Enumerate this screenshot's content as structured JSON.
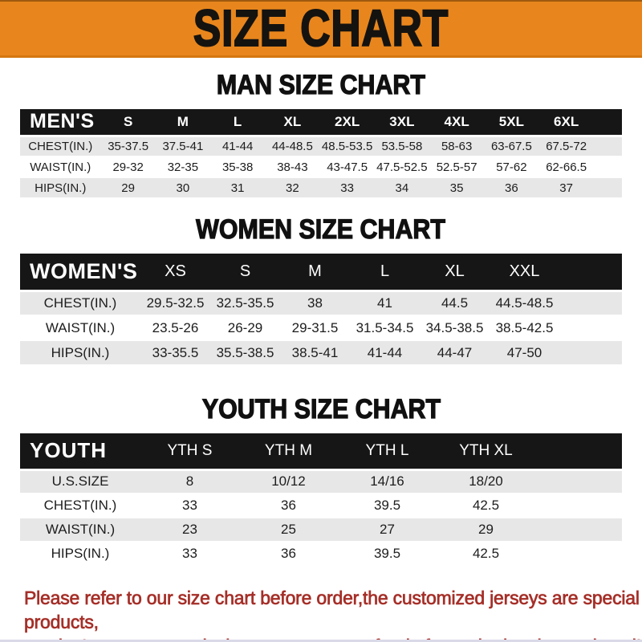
{
  "banner": {
    "title": "SIZE CHART"
  },
  "sections": [
    {
      "id": "men",
      "title": "MAN SIZE CHART",
      "header_label": "MEN'S",
      "columns": [
        "S",
        "M",
        "L",
        "XL",
        "2XL",
        "3XL",
        "4XL",
        "5XL",
        "6XL"
      ],
      "rows": [
        {
          "label": "CHEST(IN.)",
          "values": [
            "35-37.5",
            "37.5-41",
            "41-44",
            "44-48.5",
            "48.5-53.5",
            "53.5-58",
            "58-63",
            "63-67.5",
            "67.5-72"
          ]
        },
        {
          "label": "WAIST(IN.)",
          "values": [
            "29-32",
            "32-35",
            "35-38",
            "38-43",
            "43-47.5",
            "47.5-52.5",
            "52.5-57",
            "57-62",
            "62-66.5"
          ]
        },
        {
          "label": "HIPS(IN.)",
          "values": [
            "29",
            "30",
            "31",
            "32",
            "33",
            "34",
            "35",
            "36",
            "37"
          ]
        }
      ]
    },
    {
      "id": "women",
      "title": "WOMEN SIZE CHART",
      "header_label": "WOMEN'S",
      "columns": [
        "XS",
        "S",
        "M",
        "L",
        "XL",
        "XXL"
      ],
      "rows": [
        {
          "label": "CHEST(IN.)",
          "values": [
            "29.5-32.5",
            "32.5-35.5",
            "38",
            "41",
            "44.5",
            "44.5-48.5"
          ]
        },
        {
          "label": "WAIST(IN.)",
          "values": [
            "23.5-26",
            "26-29",
            "29-31.5",
            "31.5-34.5",
            "34.5-38.5",
            "38.5-42.5"
          ]
        },
        {
          "label": "HIPS(IN.)",
          "values": [
            "33-35.5",
            "35.5-38.5",
            "38.5-41",
            "41-44",
            "44-47",
            "47-50"
          ]
        }
      ]
    },
    {
      "id": "youth",
      "title": "YOUTH SIZE CHART",
      "header_label": "YOUTH",
      "columns": [
        "YTH S",
        "YTH M",
        "YTH L",
        "YTH XL"
      ],
      "rows": [
        {
          "label": "U.S.SIZE",
          "values": [
            "8",
            "10/12",
            "14/16",
            "18/20"
          ]
        },
        {
          "label": "CHEST(IN.)",
          "values": [
            "33",
            "36",
            "39.5",
            "42.5"
          ]
        },
        {
          "label": "WAIST(IN.)",
          "values": [
            "23",
            "25",
            "27",
            "29"
          ]
        },
        {
          "label": "HIPS(IN.)",
          "values": [
            "33",
            "36",
            "39.5",
            "42.5"
          ]
        }
      ]
    }
  ],
  "footer": {
    "line1": "Please refer to our size chart before order,the customized jerseys are special products,",
    "line2": "we don't accept cancel, change, teturn or refund after order has been placed!"
  },
  "colors": {
    "banner_bg": "#E8861D",
    "table_header_bg": "#161616",
    "row_alt_bg": "#E7E7E7",
    "footer_text": "#A52F28"
  }
}
